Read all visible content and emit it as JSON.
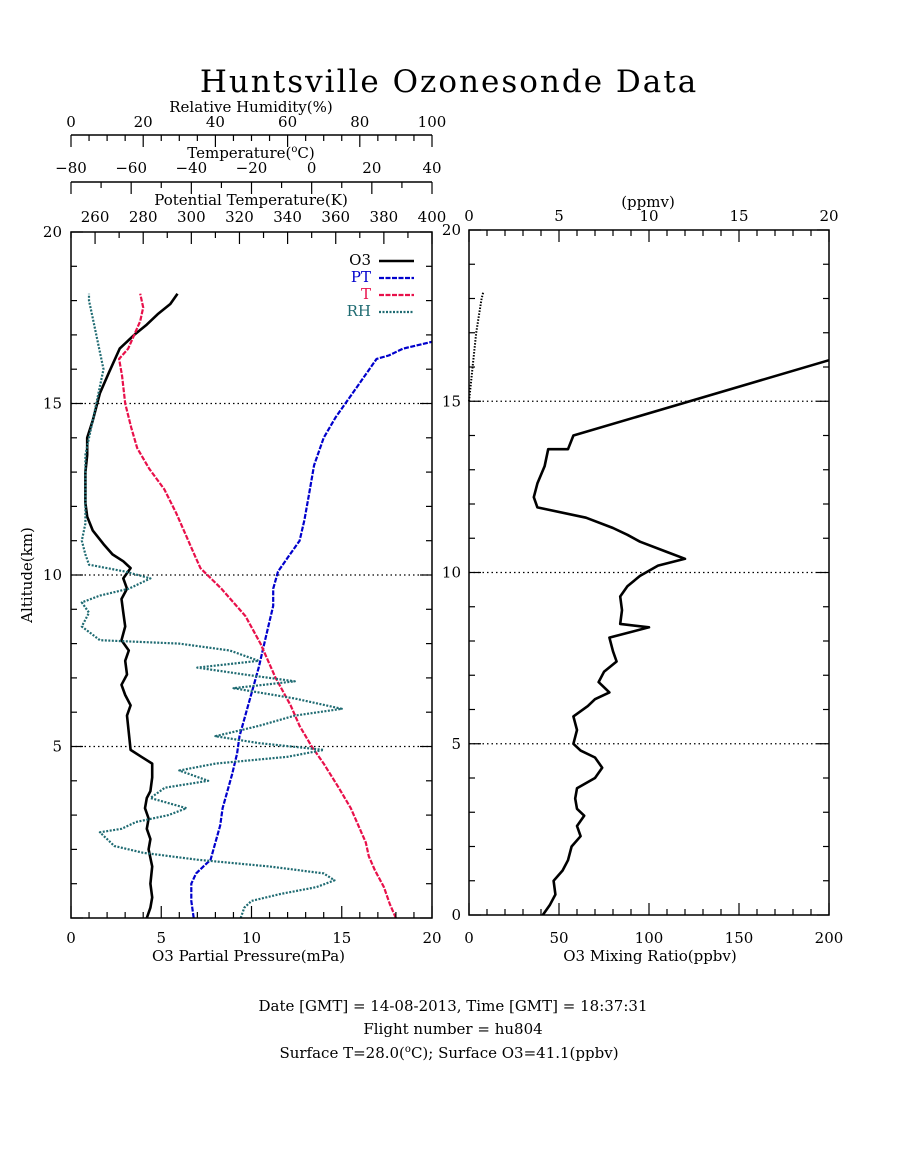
{
  "title": "Huntsville Ozonesonde Data",
  "footer": {
    "line1": "Date [GMT] = 14-08-2013,  Time [GMT] = 18:37:31",
    "line2": "Flight number = hu804",
    "line3_pre": "Surface T=28.0(",
    "line3_unit": "C); Surface O3=41.1(ppbv)"
  },
  "colors": {
    "o3": "#000000",
    "pt": "#0000cc",
    "t": "#e8104a",
    "rh": "#1f6b72",
    "frame": "#000000"
  },
  "chart_data": [
    {
      "type": "line",
      "panel": "left",
      "ylabel": "Altitude(km)",
      "ylim": [
        0,
        20
      ],
      "yticks": [
        5,
        10,
        15,
        20
      ],
      "gridlines_y": [
        5,
        10,
        15
      ],
      "axes": {
        "o3": {
          "label": "O3 Partial Pressure(mPa)",
          "range": [
            0,
            20
          ],
          "ticks": [
            0,
            5,
            10,
            15,
            20
          ],
          "position": "bottom"
        },
        "pt": {
          "label": "Potential Temperature(K)",
          "range": [
            250,
            400
          ],
          "ticks": [
            260,
            280,
            300,
            320,
            340,
            360,
            380,
            400
          ],
          "position": "top"
        },
        "t": {
          "label_pre": "Temperature(",
          "label_sup": "o",
          "label_post": "C)",
          "range": [
            -80,
            40
          ],
          "ticks": [
            -80,
            -60,
            -40,
            -20,
            0,
            20,
            40
          ],
          "tick_labels": [
            "−80",
            "−60",
            "−40",
            "−20",
            "0",
            "20",
            "40"
          ],
          "position": "top"
        },
        "rh": {
          "label": "Relative Humidity(%)",
          "range": [
            0,
            100
          ],
          "ticks": [
            0,
            20,
            40,
            60,
            80,
            100
          ],
          "position": "top"
        }
      },
      "legend": {
        "placement": "top-right",
        "entries": [
          "O3",
          "PT",
          "T",
          "RH"
        ]
      },
      "series": [
        {
          "name": "O3",
          "x_axis": "o3",
          "values": [
            [
              4.2,
              0
            ],
            [
              4.4,
              0.3
            ],
            [
              4.5,
              0.6
            ],
            [
              4.4,
              1.0
            ],
            [
              4.5,
              1.5
            ],
            [
              4.3,
              2.0
            ],
            [
              4.4,
              2.3
            ],
            [
              4.2,
              2.6
            ],
            [
              4.3,
              2.9
            ],
            [
              4.1,
              3.2
            ],
            [
              4.2,
              3.5
            ],
            [
              4.4,
              3.7
            ],
            [
              4.5,
              4.1
            ],
            [
              4.5,
              4.5
            ],
            [
              3.9,
              4.7
            ],
            [
              3.3,
              4.9
            ],
            [
              3.2,
              5.4
            ],
            [
              3.1,
              5.9
            ],
            [
              3.3,
              6.2
            ],
            [
              3.0,
              6.5
            ],
            [
              2.8,
              6.8
            ],
            [
              3.1,
              7.1
            ],
            [
              3.0,
              7.5
            ],
            [
              3.2,
              7.8
            ],
            [
              2.8,
              8.1
            ],
            [
              3.0,
              8.5
            ],
            [
              2.9,
              8.9
            ],
            [
              2.8,
              9.3
            ],
            [
              3.1,
              9.6
            ],
            [
              2.9,
              9.9
            ],
            [
              3.3,
              10.2
            ],
            [
              2.9,
              10.4
            ],
            [
              2.3,
              10.6
            ],
            [
              1.8,
              10.9
            ],
            [
              1.2,
              11.3
            ],
            [
              0.9,
              11.7
            ],
            [
              0.8,
              12.1
            ],
            [
              0.8,
              12.6
            ],
            [
              0.8,
              13.0
            ],
            [
              0.9,
              13.5
            ],
            [
              0.9,
              14.0
            ],
            [
              1.2,
              14.5
            ],
            [
              1.6,
              15.3
            ],
            [
              2.1,
              15.9
            ],
            [
              2.7,
              16.6
            ],
            [
              3.5,
              17.0
            ],
            [
              4.2,
              17.3
            ],
            [
              4.8,
              17.6
            ],
            [
              5.5,
              17.9
            ],
            [
              5.9,
              18.2
            ]
          ]
        },
        {
          "name": "PT",
          "x_axis": "pt",
          "values": [
            [
              301,
              0
            ],
            [
              300,
              0.5
            ],
            [
              300,
              1.0
            ],
            [
              302,
              1.3
            ],
            [
              308,
              1.7
            ],
            [
              310,
              2.2
            ],
            [
              312,
              2.7
            ],
            [
              313,
              3.2
            ],
            [
              315,
              3.7
            ],
            [
              317,
              4.2
            ],
            [
              319,
              4.8
            ],
            [
              320,
              5.3
            ],
            [
              322,
              5.8
            ],
            [
              324,
              6.3
            ],
            [
              326,
              6.8
            ],
            [
              328,
              7.3
            ],
            [
              330,
              7.9
            ],
            [
              332,
              8.5
            ],
            [
              334,
              9.1
            ],
            [
              334,
              9.6
            ],
            [
              336,
              10.1
            ],
            [
              340,
              10.5
            ],
            [
              345,
              11.0
            ],
            [
              347,
              11.6
            ],
            [
              349,
              12.4
            ],
            [
              351,
              13.2
            ],
            [
              355,
              14.0
            ],
            [
              360,
              14.6
            ],
            [
              368,
              15.4
            ],
            [
              374,
              16.0
            ],
            [
              377,
              16.3
            ],
            [
              382,
              16.4
            ],
            [
              388,
              16.6
            ],
            [
              400,
              16.8
            ]
          ]
        },
        {
          "name": "T",
          "x_axis": "t",
          "values": [
            [
              28,
              0
            ],
            [
              26,
              0.4
            ],
            [
              24,
              0.9
            ],
            [
              21,
              1.4
            ],
            [
              19,
              1.8
            ],
            [
              18,
              2.2
            ],
            [
              16,
              2.6
            ],
            [
              13,
              3.2
            ],
            [
              9,
              3.8
            ],
            [
              4,
              4.5
            ],
            [
              0,
              5.0
            ],
            [
              -4,
              5.6
            ],
            [
              -7,
              6.2
            ],
            [
              -12,
              7.0
            ],
            [
              -17,
              8.0
            ],
            [
              -22,
              8.8
            ],
            [
              -30,
              9.6
            ],
            [
              -37,
              10.2
            ],
            [
              -39,
              10.6
            ],
            [
              -42,
              11.2
            ],
            [
              -45,
              11.8
            ],
            [
              -49,
              12.5
            ],
            [
              -54,
              13.1
            ],
            [
              -58,
              13.7
            ],
            [
              -60,
              14.3
            ],
            [
              -62,
              15.0
            ],
            [
              -63,
              15.8
            ],
            [
              -64,
              16.3
            ],
            [
              -61,
              16.6
            ],
            [
              -59,
              17.0
            ],
            [
              -57,
              17.4
            ],
            [
              -56,
              17.8
            ],
            [
              -57,
              18.2
            ]
          ]
        },
        {
          "name": "RH",
          "x_axis": "rh",
          "values": [
            [
              47,
              0
            ],
            [
              48,
              0.3
            ],
            [
              50,
              0.5
            ],
            [
              58,
              0.7
            ],
            [
              68,
              0.9
            ],
            [
              73,
              1.1
            ],
            [
              70,
              1.3
            ],
            [
              55,
              1.5
            ],
            [
              35,
              1.7
            ],
            [
              20,
              1.9
            ],
            [
              12,
              2.1
            ],
            [
              10,
              2.3
            ],
            [
              8,
              2.5
            ],
            [
              14,
              2.6
            ],
            [
              18,
              2.8
            ],
            [
              27,
              3.0
            ],
            [
              32,
              3.2
            ],
            [
              22,
              3.5
            ],
            [
              26,
              3.8
            ],
            [
              38,
              4.0
            ],
            [
              30,
              4.3
            ],
            [
              40,
              4.5
            ],
            [
              60,
              4.7
            ],
            [
              70,
              4.9
            ],
            [
              52,
              5.1
            ],
            [
              40,
              5.3
            ],
            [
              52,
              5.6
            ],
            [
              62,
              5.9
            ],
            [
              75,
              6.1
            ],
            [
              62,
              6.4
            ],
            [
              45,
              6.7
            ],
            [
              62,
              6.9
            ],
            [
              48,
              7.1
            ],
            [
              35,
              7.3
            ],
            [
              52,
              7.5
            ],
            [
              44,
              7.8
            ],
            [
              30,
              8.0
            ],
            [
              8,
              8.1
            ],
            [
              3,
              8.5
            ],
            [
              5,
              8.9
            ],
            [
              3,
              9.2
            ],
            [
              8,
              9.4
            ],
            [
              16,
              9.6
            ],
            [
              22,
              9.9
            ],
            [
              15,
              10.1
            ],
            [
              5,
              10.3
            ],
            [
              4,
              10.6
            ],
            [
              3,
              11.0
            ],
            [
              4,
              11.5
            ],
            [
              4,
              12.0
            ],
            [
              4,
              12.5
            ],
            [
              4,
              13.0
            ],
            [
              4,
              13.5
            ],
            [
              5,
              14.0
            ],
            [
              6,
              14.5
            ],
            [
              7,
              15.0
            ],
            [
              8,
              15.5
            ],
            [
              9,
              16.0
            ],
            [
              8,
              16.5
            ],
            [
              7,
              17.0
            ],
            [
              6,
              17.5
            ],
            [
              5,
              18.0
            ],
            [
              5,
              18.2
            ]
          ]
        }
      ]
    },
    {
      "type": "line",
      "panel": "right",
      "xlabel": "O3 Mixing Ratio(ppbv)",
      "xlim": [
        0,
        200
      ],
      "xticks": [
        0,
        50,
        100,
        150,
        200
      ],
      "top_axis": {
        "label": "(ppmv)",
        "range": [
          0,
          20
        ],
        "ticks": [
          0,
          5,
          10,
          15,
          20
        ]
      },
      "ylim": [
        0,
        20
      ],
      "yticks": [
        0,
        5,
        10,
        15,
        20
      ],
      "gridlines_y": [
        5,
        10,
        15
      ],
      "series": [
        {
          "unit": "ppbv",
          "values": [
            [
              41,
              0
            ],
            [
              45,
              0.3
            ],
            [
              48,
              0.6
            ],
            [
              47,
              1.0
            ],
            [
              52,
              1.3
            ],
            [
              55,
              1.6
            ],
            [
              57,
              2.0
            ],
            [
              62,
              2.3
            ],
            [
              60,
              2.6
            ],
            [
              64,
              2.9
            ],
            [
              60,
              3.1
            ],
            [
              59,
              3.4
            ],
            [
              60,
              3.7
            ],
            [
              70,
              4.0
            ],
            [
              74,
              4.3
            ],
            [
              70,
              4.6
            ],
            [
              62,
              4.8
            ],
            [
              58,
              5.0
            ],
            [
              60,
              5.4
            ],
            [
              58,
              5.8
            ],
            [
              66,
              6.1
            ],
            [
              70,
              6.3
            ],
            [
              78,
              6.5
            ],
            [
              72,
              6.8
            ],
            [
              75,
              7.1
            ],
            [
              82,
              7.4
            ],
            [
              80,
              7.7
            ],
            [
              78,
              8.1
            ],
            [
              100,
              8.4
            ],
            [
              84,
              8.5
            ],
            [
              85,
              8.9
            ],
            [
              84,
              9.3
            ],
            [
              88,
              9.6
            ],
            [
              95,
              9.9
            ],
            [
              105,
              10.2
            ],
            [
              120,
              10.4
            ],
            [
              110,
              10.6
            ],
            [
              95,
              10.9
            ],
            [
              88,
              11.1
            ],
            [
              80,
              11.3
            ],
            [
              65,
              11.6
            ],
            [
              38,
              11.9
            ],
            [
              36,
              12.2
            ],
            [
              38,
              12.6
            ],
            [
              42,
              13.1
            ],
            [
              44,
              13.6
            ],
            [
              55,
              13.6
            ],
            [
              58,
              14.0
            ],
            [
              200,
              16.2
            ]
          ]
        },
        {
          "unit": "ppmv",
          "values": [
            [
              0.0,
              15.0
            ],
            [
              0.1,
              15.5
            ],
            [
              0.2,
              16.0
            ],
            [
              0.3,
              16.5
            ],
            [
              0.4,
              17.0
            ],
            [
              0.55,
              17.5
            ],
            [
              0.7,
              18.0
            ],
            [
              0.8,
              18.2
            ]
          ]
        }
      ]
    }
  ]
}
